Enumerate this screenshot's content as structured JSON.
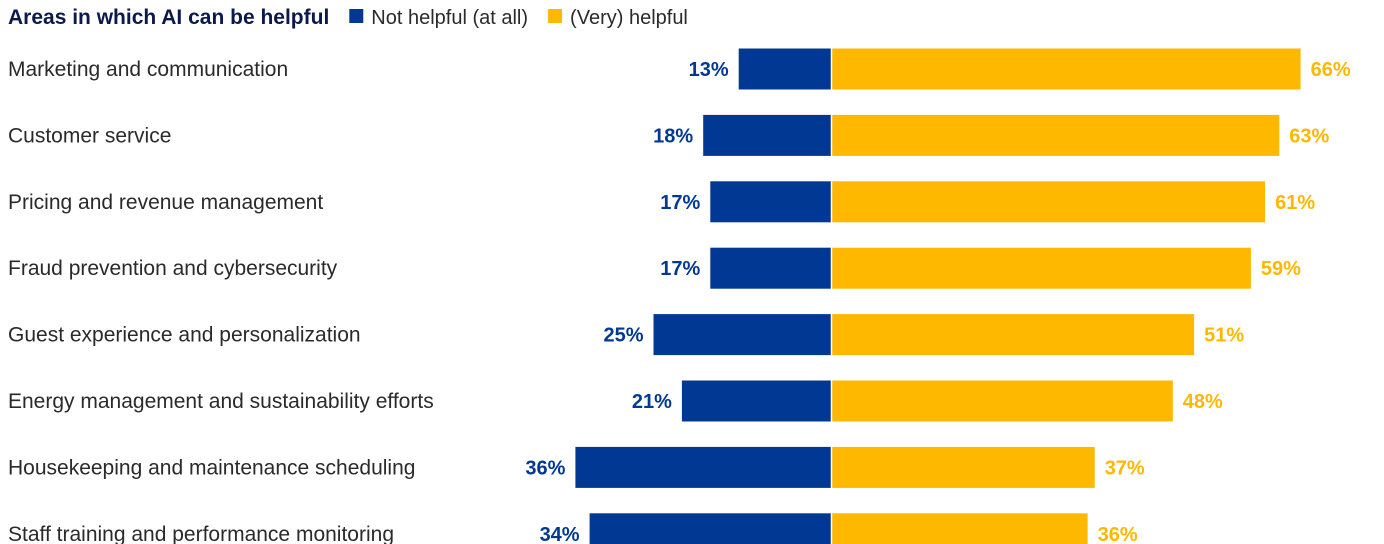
{
  "chart_data": {
    "type": "bar",
    "orientation": "horizontal-diverging",
    "title": "Areas in which AI can be helpful",
    "categories": [
      "Marketing and communication",
      "Customer service",
      "Pricing and revenue management",
      "Fraud prevention and cybersecurity",
      "Guest experience and personalization",
      "Energy management and sustainability efforts",
      "Housekeeping and maintenance scheduling",
      "Staff training and performance monitoring"
    ],
    "series": [
      {
        "name": "Not helpful (at all)",
        "color": "#003893",
        "values": [
          13,
          18,
          17,
          17,
          25,
          21,
          36,
          34
        ],
        "labels": [
          "13%",
          "18%",
          "17%",
          "17%",
          "25%",
          "21%",
          "36%",
          "34%"
        ]
      },
      {
        "name": "(Very) helpful",
        "color": "#FFB800",
        "values": [
          66,
          63,
          61,
          59,
          51,
          48,
          37,
          36
        ],
        "labels": [
          "66%",
          "63%",
          "61%",
          "59%",
          "51%",
          "48%",
          "37%",
          "36%"
        ]
      }
    ],
    "unit": "%",
    "grid": false,
    "legend_position": "top"
  }
}
